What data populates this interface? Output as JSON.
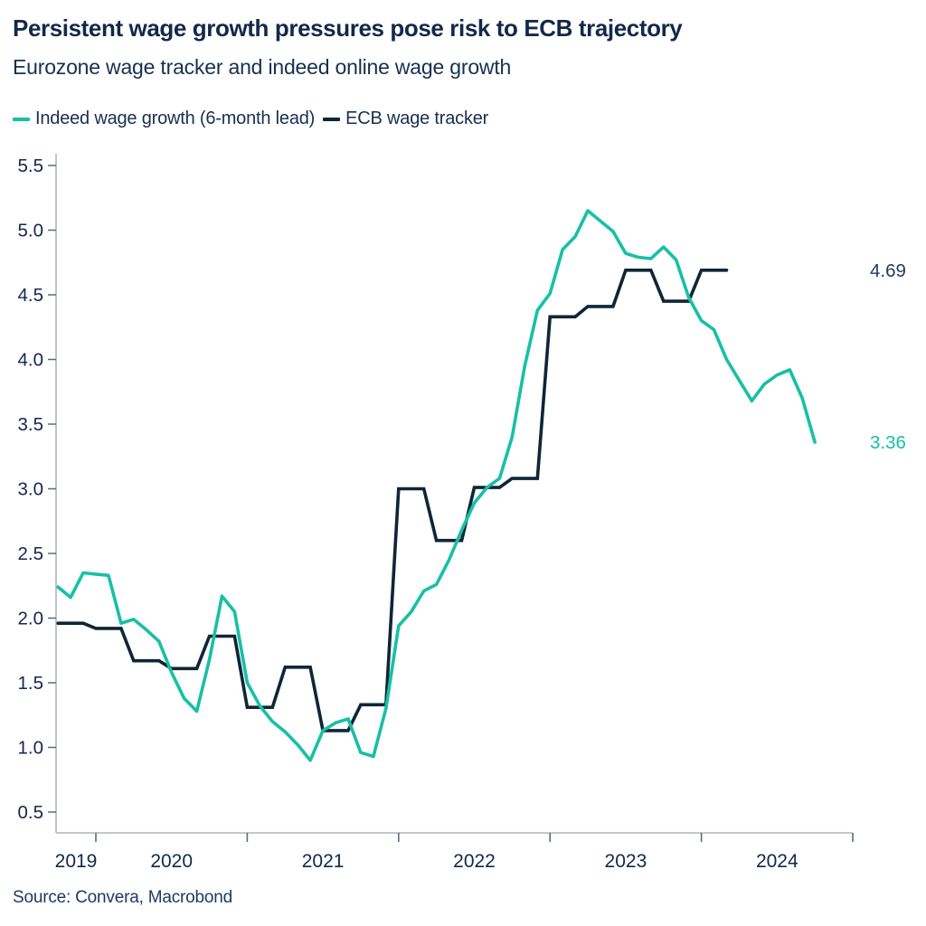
{
  "header": {
    "title": "Persistent wage growth pressures pose risk to ECB trajectory",
    "subtitle": "Eurozone wage tracker and indeed online wage growth"
  },
  "legend": [
    {
      "label": "Indeed wage growth (6-month lead)",
      "color": "#17C0A6"
    },
    {
      "label": "ECB wage tracker",
      "color": "#0F2538"
    }
  ],
  "source": "Source: Convera, Macrobond",
  "colors": {
    "navy_text": "#12294B",
    "axis_line": "#AFB6BC",
    "tick_mark": "#5C6B7A"
  },
  "chart_data": {
    "type": "line",
    "title": "Persistent wage growth pressures pose risk to ECB trajectory",
    "subtitle": "Eurozone wage tracker and indeed online wage growth",
    "x_axis": {
      "tick_labels": [
        "2019",
        "2020",
        "2021",
        "2022",
        "2023",
        "2024"
      ],
      "range_months": [
        "2019-10",
        "2025-01"
      ],
      "grid": false
    },
    "y_axis": {
      "min": 0.5,
      "max": 5.5,
      "step": 0.5,
      "tick_labels": [
        "5.5",
        "5.0",
        "4.5",
        "4.0",
        "3.5",
        "3.0",
        "2.5",
        "2.0",
        "1.5",
        "1.0",
        "0.5"
      ],
      "grid": false
    },
    "legend_position": "top-left",
    "series": [
      {
        "name": "Indeed wage growth (6-month lead)",
        "color": "#17C0A6",
        "frequency": "monthly",
        "start_month": "2019-10",
        "end_month": "2024-10",
        "end_label": "3.36",
        "values": [
          2.24,
          2.16,
          2.35,
          2.34,
          2.33,
          1.96,
          1.99,
          1.91,
          1.82,
          1.58,
          1.38,
          1.28,
          1.68,
          2.17,
          2.05,
          1.5,
          1.32,
          1.2,
          1.12,
          1.02,
          0.9,
          1.13,
          1.19,
          1.22,
          0.96,
          0.93,
          1.3,
          1.94,
          2.05,
          2.21,
          2.26,
          2.45,
          2.68,
          2.89,
          3.01,
          3.08,
          3.4,
          3.95,
          4.38,
          4.51,
          4.85,
          4.95,
          5.15,
          5.07,
          4.99,
          4.82,
          4.79,
          4.78,
          4.87,
          4.77,
          4.48,
          4.3,
          4.23,
          4.0,
          3.84,
          3.68,
          3.81,
          3.88,
          3.92,
          3.7,
          3.36
        ]
      },
      {
        "name": "ECB wage tracker",
        "color": "#0F2538",
        "frequency": "monthly (quarterly data held constant)",
        "start_month": "2019-10",
        "end_month": "2024-03",
        "end_label": "4.69",
        "values": [
          1.96,
          1.96,
          1.96,
          1.92,
          1.92,
          1.92,
          1.67,
          1.67,
          1.67,
          1.61,
          1.61,
          1.61,
          1.86,
          1.86,
          1.86,
          1.31,
          1.31,
          1.31,
          1.62,
          1.62,
          1.62,
          1.13,
          1.13,
          1.13,
          1.33,
          1.33,
          1.33,
          3.0,
          3.0,
          3.0,
          2.6,
          2.6,
          2.6,
          3.01,
          3.01,
          3.01,
          3.08,
          3.08,
          3.08,
          4.33,
          4.33,
          4.33,
          4.41,
          4.41,
          4.41,
          4.69,
          4.69,
          4.69,
          4.45,
          4.45,
          4.45,
          4.69,
          4.69,
          4.69
        ]
      }
    ]
  }
}
